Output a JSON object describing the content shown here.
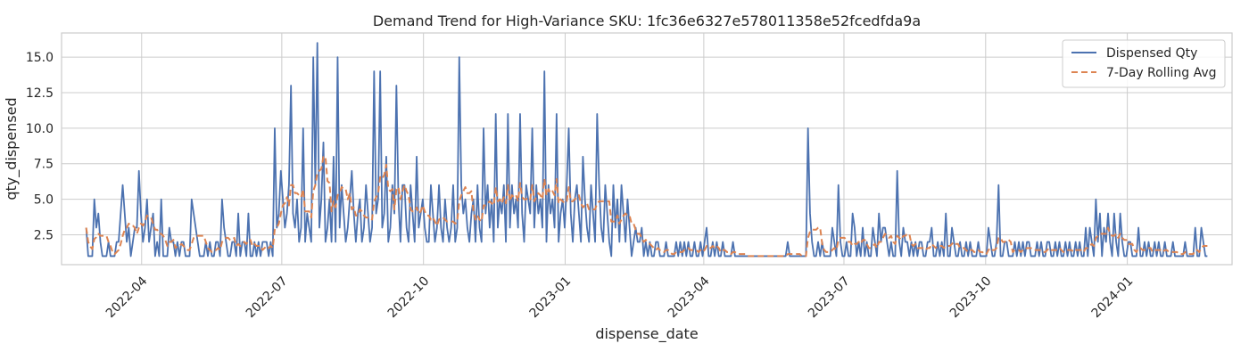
{
  "chart_data": {
    "type": "line",
    "title": "Demand Trend for High-Variance SKU: 1fc36e6327e578011358e52fcedfda9a",
    "xlabel": "dispense_date",
    "ylabel": "qty_dispensed",
    "x_start": "2022-02-24",
    "x_end": "2024-02-22",
    "xlim": [
      "2022-02-08",
      "2024-03-09"
    ],
    "ylim": [
      0.4,
      16.7
    ],
    "x_ticks": [
      "2022-04",
      "2022-07",
      "2022-10",
      "2023-01",
      "2023-04",
      "2023-07",
      "2023-10",
      "2024-01"
    ],
    "x_tick_dates": [
      "2022-04-01",
      "2022-07-01",
      "2022-10-01",
      "2023-01-01",
      "2023-04-01",
      "2023-07-01",
      "2023-10-01",
      "2024-01-01"
    ],
    "y_ticks": [
      2.5,
      5.0,
      7.5,
      10.0,
      12.5,
      15.0
    ],
    "y_tick_labels": [
      "2.5",
      "5.0",
      "7.5",
      "10.0",
      "12.5",
      "15.0"
    ],
    "grid": true,
    "legend_position": "top-right",
    "series": [
      {
        "name": "Dispensed Qty",
        "color": "#4c72b0",
        "style": "solid",
        "values": [
          3,
          1,
          1,
          1,
          5,
          3,
          4,
          2,
          1,
          1,
          1,
          2,
          1,
          1,
          1,
          2,
          2,
          4,
          6,
          4,
          2,
          3,
          1,
          2,
          3,
          3,
          7,
          4,
          2,
          3,
          5,
          2,
          3,
          4,
          1,
          2,
          1,
          5,
          1,
          1,
          1,
          3,
          2,
          2,
          1,
          2,
          1,
          2,
          2,
          1,
          1,
          1,
          5,
          4,
          3,
          2,
          1,
          1,
          1,
          2,
          1,
          2,
          1,
          1,
          2,
          2,
          1,
          5,
          3,
          2,
          1,
          1,
          2,
          2,
          1,
          4,
          1,
          2,
          2,
          1,
          4,
          1,
          1,
          2,
          1,
          2,
          1,
          2,
          2,
          2,
          1,
          2,
          1,
          10,
          3,
          4,
          7,
          5,
          3,
          4,
          6,
          13,
          4,
          3,
          5,
          2,
          3,
          10,
          2,
          4,
          3,
          2,
          15,
          6,
          16,
          3,
          5,
          9,
          2,
          3,
          5,
          2,
          8,
          2,
          15,
          3,
          6,
          4,
          2,
          3,
          5,
          7,
          4,
          2,
          4,
          5,
          2,
          3,
          6,
          4,
          2,
          3,
          14,
          4,
          5,
          14,
          3,
          4,
          8,
          2,
          3,
          6,
          4,
          13,
          5,
          2,
          6,
          6,
          3,
          2,
          6,
          4,
          2,
          8,
          3,
          4,
          5,
          3,
          2,
          2,
          6,
          4,
          2,
          3,
          6,
          3,
          2,
          5,
          3,
          2,
          3,
          6,
          2,
          3,
          15,
          6,
          4,
          5,
          3,
          2,
          4,
          5,
          2,
          6,
          3,
          2,
          10,
          4,
          6,
          3,
          5,
          2,
          11,
          3,
          5,
          4,
          6,
          2,
          11,
          3,
          6,
          4,
          5,
          3,
          11,
          4,
          2,
          6,
          5,
          4,
          10,
          3,
          6,
          4,
          5,
          3,
          14,
          2,
          6,
          4,
          5,
          3,
          11,
          2,
          4,
          5,
          3,
          6,
          10,
          4,
          2,
          5,
          6,
          4,
          2,
          8,
          5,
          3,
          2,
          6,
          4,
          2,
          11,
          6,
          3,
          2,
          6,
          4,
          2,
          1,
          6,
          3,
          5,
          2,
          6,
          4,
          2,
          5,
          3,
          1,
          2,
          3,
          2,
          2,
          3,
          1,
          2,
          1,
          2,
          1,
          1,
          2,
          2,
          1,
          1,
          1,
          2,
          1,
          1,
          1,
          1,
          2,
          1,
          2,
          1,
          2,
          1,
          2,
          1,
          1,
          2,
          1,
          1,
          2,
          1,
          2,
          3,
          1,
          1,
          2,
          1,
          2,
          1,
          1,
          2,
          1,
          1,
          1,
          1,
          2,
          1,
          1,
          1,
          1,
          1,
          1,
          1,
          1,
          1,
          1,
          1,
          1,
          1,
          1,
          1,
          1,
          1,
          1,
          1,
          1,
          1,
          1,
          1,
          1,
          1,
          1,
          2,
          1,
          1,
          1,
          1,
          1,
          1,
          1,
          1,
          1,
          10,
          4,
          2,
          1,
          1,
          2,
          1,
          2,
          1,
          1,
          1,
          1,
          3,
          2,
          1,
          6,
          2,
          1,
          1,
          2,
          1,
          1,
          4,
          3,
          1,
          2,
          1,
          3,
          1,
          2,
          1,
          1,
          3,
          2,
          1,
          4,
          2,
          3,
          3,
          2,
          1,
          2,
          1,
          1,
          7,
          2,
          1,
          3,
          2,
          2,
          1,
          2,
          1,
          2,
          1,
          2,
          2,
          1,
          1,
          2,
          2,
          3,
          1,
          1,
          2,
          1,
          2,
          1,
          4,
          1,
          1,
          3,
          2,
          1,
          1,
          2,
          1,
          1,
          2,
          1,
          2,
          1,
          1,
          1,
          2,
          1,
          1,
          1,
          1,
          3,
          2,
          1,
          1,
          2,
          6,
          1,
          1,
          2,
          2,
          1,
          1,
          1,
          2,
          1,
          2,
          1,
          2,
          1,
          2,
          2,
          1,
          1,
          1,
          2,
          1,
          2,
          1,
          1,
          2,
          2,
          1,
          1,
          2,
          1,
          2,
          1,
          1,
          2,
          1,
          2,
          1,
          1,
          2,
          1,
          2,
          1,
          1,
          3,
          1,
          3,
          2,
          1,
          5,
          2,
          4,
          1,
          3,
          2,
          4,
          2,
          1,
          4,
          2,
          1,
          4,
          2,
          1,
          1,
          2,
          2,
          1,
          1,
          1,
          3,
          1,
          1,
          2,
          1,
          2,
          1,
          1,
          2,
          1,
          2,
          1,
          1,
          2,
          1,
          1,
          1,
          2,
          1,
          1,
          1,
          1,
          1,
          2,
          1,
          1,
          1,
          1,
          3,
          1,
          1,
          3,
          2,
          1,
          1
        ]
      },
      {
        "name": "7-Day Rolling Avg",
        "color": "#dd8452",
        "style": "dashed",
        "values": []
      }
    ]
  }
}
